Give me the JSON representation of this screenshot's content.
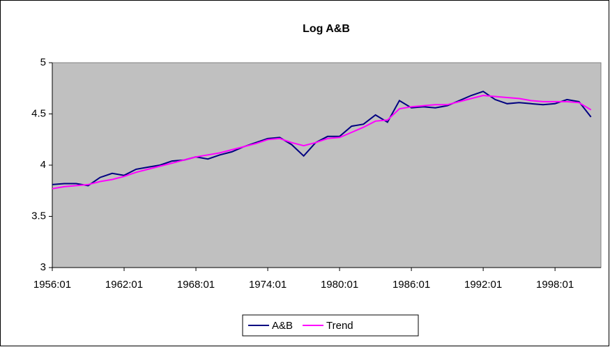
{
  "chart_data": {
    "type": "line",
    "title": "Log A&B",
    "categories": [
      "1956:01",
      null,
      null,
      null,
      null,
      null,
      "1962:01",
      null,
      null,
      null,
      null,
      null,
      "1968:01",
      null,
      null,
      null,
      null,
      null,
      "1974:01",
      null,
      null,
      null,
      null,
      null,
      "1980:01",
      null,
      null,
      null,
      null,
      null,
      "1986:01",
      null,
      null,
      null,
      null,
      null,
      "1992:01",
      null,
      null,
      null,
      null,
      null,
      "1998:01",
      null,
      null,
      null
    ],
    "series": [
      {
        "name": "A&B",
        "color": "#000080",
        "values": [
          3.81,
          3.82,
          3.82,
          3.8,
          3.88,
          3.92,
          3.9,
          3.96,
          3.98,
          4.0,
          4.04,
          4.05,
          4.08,
          4.06,
          4.1,
          4.13,
          4.18,
          4.22,
          4.26,
          4.27,
          4.2,
          4.09,
          4.22,
          4.28,
          4.28,
          4.38,
          4.4,
          4.49,
          4.42,
          4.63,
          4.56,
          4.57,
          4.56,
          4.58,
          4.63,
          4.68,
          4.72,
          4.64,
          4.6,
          4.61,
          4.6,
          4.59,
          4.6,
          4.64,
          4.62,
          4.47
        ]
      },
      {
        "name": "Trend",
        "color": "#ff00ff",
        "values": [
          3.77,
          3.79,
          3.8,
          3.81,
          3.84,
          3.86,
          3.89,
          3.93,
          3.96,
          3.99,
          4.02,
          4.05,
          4.08,
          4.1,
          4.12,
          4.15,
          4.18,
          4.21,
          4.25,
          4.26,
          4.22,
          4.19,
          4.22,
          4.26,
          4.27,
          4.32,
          4.37,
          4.43,
          4.44,
          4.55,
          4.57,
          4.58,
          4.59,
          4.59,
          4.62,
          4.65,
          4.68,
          4.67,
          4.66,
          4.65,
          4.63,
          4.62,
          4.62,
          4.62,
          4.61,
          4.54
        ]
      }
    ],
    "ylim": [
      3,
      5
    ],
    "yticks": [
      3,
      3.5,
      4,
      4.5,
      5
    ],
    "grid": false,
    "plot_background": "#c0c0c0",
    "legend": "bottom"
  }
}
